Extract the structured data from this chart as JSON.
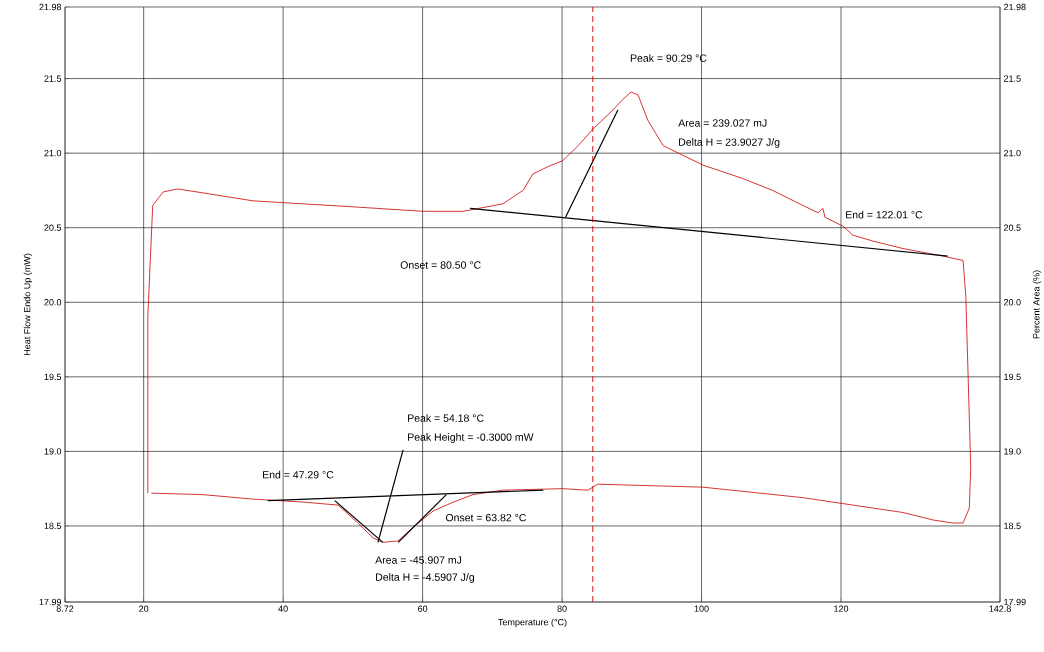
{
  "chart_data": {
    "type": "line",
    "xlabel": "Temperature (°C)",
    "ylabel": "Heat Flow Endo Up (mW)",
    "y2label": "Percent Area (%)",
    "xlim": [
      8.72,
      142.8
    ],
    "xticks": [
      8.72,
      20,
      40,
      60,
      80,
      100,
      120,
      142.8
    ],
    "ylim": [
      17.99,
      21.98
    ],
    "yticks": [
      17.99,
      18.5,
      {
        "value": 19,
        "label": "19.0"
      },
      19.5,
      {
        "value": 20,
        "label": "20.0"
      },
      20.5,
      {
        "value": 21,
        "label": "21.0"
      },
      21.5,
      21.98
    ],
    "y2lim": [
      17.99,
      21.98
    ],
    "y2ticks": [
      17.99,
      18.5,
      {
        "value": 19,
        "label": "19.0"
      },
      19.5,
      {
        "value": 20,
        "label": "20.0"
      },
      20.5,
      {
        "value": 21,
        "label": "21.0"
      },
      21.5,
      21.98
    ],
    "grid": true,
    "marker": "none",
    "line_style": "solid",
    "series": [
      {
        "color": "#cc0000",
        "x": [
          20.6,
          20.6,
          21.3,
          22.8,
          24.9,
          35.7,
          50.0,
          60.0,
          65.8,
          71.5,
          74.4,
          75.8,
          78.0,
          80.1,
          82.3,
          84.4,
          87.3,
          88.7,
          89.9,
          90.9,
          92.3,
          94.5,
          100.2,
          105.9,
          110.2,
          114.5,
          116.7,
          117.4,
          117.7,
          120.3,
          121.7,
          124.6,
          128.9,
          134.6,
          137.5,
          137.9,
          138.6,
          138.4,
          137.5,
          136.0,
          133.2,
          128.9,
          114.5,
          100.2,
          85.1,
          84.4,
          83.7,
          80.1,
          71.5,
          67.2,
          64.4,
          61.5,
          58.6,
          56.5,
          54.3,
          52.9,
          50.7,
          47.9,
          42.9,
          35.7,
          28.5,
          21.1
        ],
        "values": [
          18.72,
          19.91,
          20.65,
          20.74,
          20.76,
          20.68,
          20.64,
          20.61,
          20.61,
          20.66,
          20.75,
          20.86,
          20.91,
          20.95,
          21.05,
          21.16,
          21.29,
          21.36,
          21.41,
          21.39,
          21.22,
          21.05,
          20.92,
          20.83,
          20.75,
          20.65,
          20.6,
          20.63,
          20.57,
          20.51,
          20.45,
          20.41,
          20.36,
          20.31,
          20.28,
          20.04,
          18.89,
          18.62,
          18.52,
          18.52,
          18.54,
          18.59,
          18.69,
          18.76,
          18.78,
          18.76,
          18.74,
          18.75,
          18.74,
          18.71,
          18.66,
          18.6,
          18.49,
          18.4,
          18.39,
          18.42,
          18.52,
          18.64,
          18.66,
          18.68,
          18.71,
          18.72
        ]
      },
      {
        "color": "#000000",
        "x": [
          66.8,
          135.3
        ],
        "values": [
          20.63,
          20.31
        ]
      },
      {
        "color": "#000000",
        "x": [
          80.5,
          88.0
        ],
        "values": [
          20.57,
          21.29
        ]
      },
      {
        "color": "#000000",
        "x": [
          37.8,
          77.3
        ],
        "values": [
          18.67,
          18.74
        ]
      },
      {
        "color": "#000000",
        "x": [
          47.4,
          54.3
        ],
        "values": [
          18.67,
          18.39
        ]
      },
      {
        "color": "#000000",
        "x": [
          63.4,
          56.5
        ],
        "values": [
          18.71,
          18.39
        ]
      },
      {
        "color": "#000000",
        "x": [
          57.2,
          53.6
        ],
        "values": [
          19.01,
          18.39
        ]
      }
    ],
    "ref_lines": [
      {
        "axis": "x",
        "value": 84.4,
        "color": "#cc0000",
        "line_style": "dashed"
      }
    ],
    "annotations": [
      {
        "text": "Peak = 90.29 °C",
        "x": 90.29,
        "y": 21.41
      },
      "Area = 239.027 mJ",
      "Delta H = 23.9027 J/g",
      "Onset = 80.50 °C",
      {
        "text": "End = 122.01 °C",
        "x": 122.01,
        "y": 20.38
      },
      "Peak = 54.18 °C",
      "Peak Height = -0.3000 mW",
      {
        "text": "End = 47.29 °C",
        "x": 47.29,
        "y": 18.67
      },
      {
        "text": "Onset = 63.82 °C",
        "x": 63.82,
        "y": 18.71
      },
      "Area = -45.907 mJ",
      "Delta H = -4.5907 J/g"
    ]
  }
}
